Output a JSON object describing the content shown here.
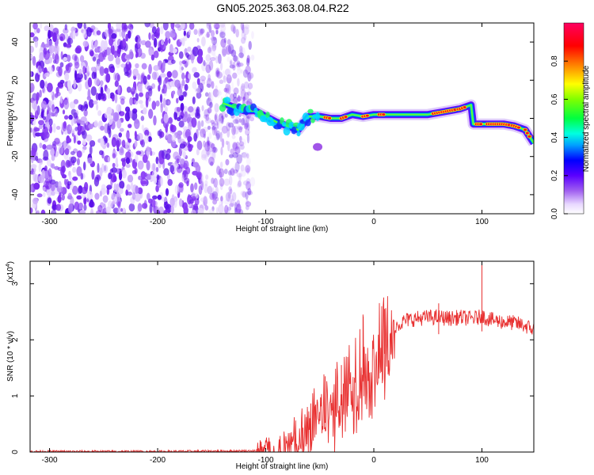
{
  "title": "GN05.2025.363.08.04.R22",
  "colorbar": {
    "label": "Normalized spectral amplitude",
    "ticks": [
      "0.0",
      "0.2",
      "0.4",
      "0.6",
      "0.8"
    ],
    "tick_values": [
      0.0,
      0.2,
      0.4,
      0.6,
      0.8
    ],
    "range": [
      0,
      1
    ],
    "colormap": [
      "#ffffff",
      "#e0c8ff",
      "#8a2be2",
      "#5a00ff",
      "#0000ff",
      "#00c8ff",
      "#00ff60",
      "#80ff00",
      "#ffff00",
      "#ff8000",
      "#ff0000",
      "#ff0060"
    ]
  },
  "chart_data": [
    {
      "type": "heatmap",
      "title": "GN05.2025.363.08.04.R22",
      "xlabel": "Height of straight line (km)",
      "ylabel": "Frequency (Hz)",
      "xlim": [
        -318,
        148
      ],
      "ylim": [
        -50,
        50
      ],
      "xticks": [
        -300,
        -200,
        -100,
        0,
        100
      ],
      "xtick_labels": [
        "-300",
        "-200",
        "-100",
        "0",
        "100"
      ],
      "yticks": [
        -40,
        -20,
        0,
        20,
        40
      ],
      "ytick_labels": [
        "-40",
        "-20",
        "0",
        "20",
        "40"
      ],
      "noise_region_km": [
        -318,
        -112
      ],
      "ridge": {
        "x": [
          -140,
          -130,
          -120,
          -110,
          -100,
          -90,
          -80,
          -70,
          -60,
          -50,
          -40,
          -30,
          -20,
          -10,
          0,
          10,
          20,
          30,
          40,
          50,
          60,
          70,
          80,
          90,
          92,
          100,
          110,
          120,
          130,
          140,
          148
        ],
        "y": [
          8,
          6,
          4,
          4,
          1,
          -2,
          -4,
          -6,
          1,
          1,
          0,
          0,
          2,
          1,
          2,
          2,
          2,
          2,
          2,
          2,
          3,
          4,
          5,
          7,
          -3,
          -3,
          -3,
          -3,
          -4,
          -6,
          -13
        ]
      }
    },
    {
      "type": "line",
      "xlabel": "Height of straight line (km)",
      "ylabel": "SNR (10 * v/v)",
      "scale_label": "(x10",
      "scale_exp": "4",
      "scale_close": ")",
      "xlim": [
        -318,
        148
      ],
      "ylim": [
        0,
        3.4
      ],
      "xticks": [
        -300,
        -200,
        -100,
        0,
        100
      ],
      "xtick_labels": [
        "-300",
        "-200",
        "-100",
        "0",
        "100"
      ],
      "yticks": [
        0,
        1,
        2,
        3
      ],
      "ytick_labels": [
        "0",
        "1",
        "2",
        "3"
      ],
      "series": [
        {
          "name": "SNR",
          "color": "#e83030",
          "x": [
            -318,
            -200,
            -110,
            -100,
            -90,
            -80,
            -75,
            -70,
            -65,
            -60,
            -55,
            -50,
            -45,
            -40,
            -35,
            -30,
            -25,
            -20,
            -15,
            -10,
            -5,
            0,
            5,
            10,
            15,
            20,
            25,
            30,
            40,
            50,
            60,
            70,
            80,
            90,
            98,
            100,
            102,
            110,
            120,
            130,
            140,
            148
          ],
          "y": [
            0.01,
            0.01,
            0.02,
            0.03,
            0.06,
            0.12,
            0.2,
            0.28,
            0.38,
            0.5,
            0.62,
            0.72,
            0.82,
            0.92,
            1.05,
            1.2,
            1.35,
            1.5,
            1.6,
            1.7,
            1.78,
            1.85,
            1.95,
            2.05,
            2.15,
            2.25,
            2.3,
            2.35,
            2.38,
            2.4,
            2.4,
            2.38,
            2.4,
            2.38,
            2.4,
            2.45,
            2.4,
            2.35,
            2.32,
            2.3,
            2.25,
            2.18
          ],
          "spikes": [
            {
              "x": -45,
              "y": 1.35
            },
            {
              "x": -30,
              "y": 1.55
            },
            {
              "x": -10,
              "y": 2.45
            },
            {
              "x": 10,
              "y": 2.55
            },
            {
              "x": 100,
              "y": 3.35
            },
            {
              "x": 60,
              "y": 2.65
            }
          ]
        }
      ]
    }
  ]
}
